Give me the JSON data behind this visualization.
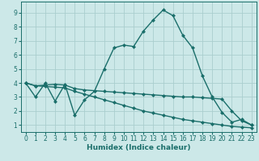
{
  "xlabel": "Humidex (Indice chaleur)",
  "bg_color": "#cce8e8",
  "grid_color": "#aacece",
  "line_color": "#1a6e6a",
  "spine_color": "#1a6e6a",
  "xlim": [
    -0.5,
    23.5
  ],
  "ylim": [
    0.5,
    9.8
  ],
  "yticks": [
    1,
    2,
    3,
    4,
    5,
    6,
    7,
    8,
    9
  ],
  "xticks": [
    0,
    1,
    2,
    3,
    4,
    5,
    6,
    7,
    8,
    9,
    10,
    11,
    12,
    13,
    14,
    15,
    16,
    17,
    18,
    19,
    20,
    21,
    22,
    23
  ],
  "line1_x": [
    0,
    1,
    2,
    3,
    4,
    5,
    6,
    7,
    8,
    9,
    10,
    11,
    12,
    13,
    14,
    15,
    16,
    17,
    18,
    19,
    20,
    21,
    22,
    23
  ],
  "line1_y": [
    4.0,
    3.0,
    4.0,
    2.7,
    3.9,
    1.7,
    2.8,
    3.4,
    5.0,
    6.5,
    6.7,
    6.6,
    7.7,
    8.5,
    9.2,
    8.8,
    7.4,
    6.5,
    4.5,
    3.0,
    1.9,
    1.2,
    1.4,
    1.0
  ],
  "line2_x": [
    0,
    1,
    2,
    3,
    4,
    5,
    6,
    7,
    8,
    9,
    10,
    11,
    12,
    13,
    14,
    15,
    16,
    17,
    18,
    19,
    20,
    21,
    22,
    23
  ],
  "line2_y": [
    4.0,
    3.8,
    3.85,
    3.9,
    3.85,
    3.6,
    3.5,
    3.45,
    3.4,
    3.35,
    3.3,
    3.25,
    3.2,
    3.15,
    3.1,
    3.05,
    3.0,
    3.0,
    2.95,
    2.9,
    2.85,
    2.0,
    1.3,
    1.0
  ],
  "line3_x": [
    0,
    1,
    2,
    3,
    4,
    5,
    6,
    7,
    8,
    9,
    10,
    11,
    12,
    13,
    14,
    15,
    16,
    17,
    18,
    19,
    20,
    21,
    22,
    23
  ],
  "line3_y": [
    4.0,
    3.8,
    3.75,
    3.7,
    3.65,
    3.4,
    3.2,
    3.0,
    2.8,
    2.6,
    2.4,
    2.2,
    2.0,
    1.85,
    1.7,
    1.55,
    1.4,
    1.3,
    1.2,
    1.1,
    1.0,
    0.9,
    0.85,
    0.8
  ],
  "tick_fontsize": 5.5,
  "xlabel_fontsize": 6.5,
  "marker_size": 2.5,
  "line_width": 1.0
}
